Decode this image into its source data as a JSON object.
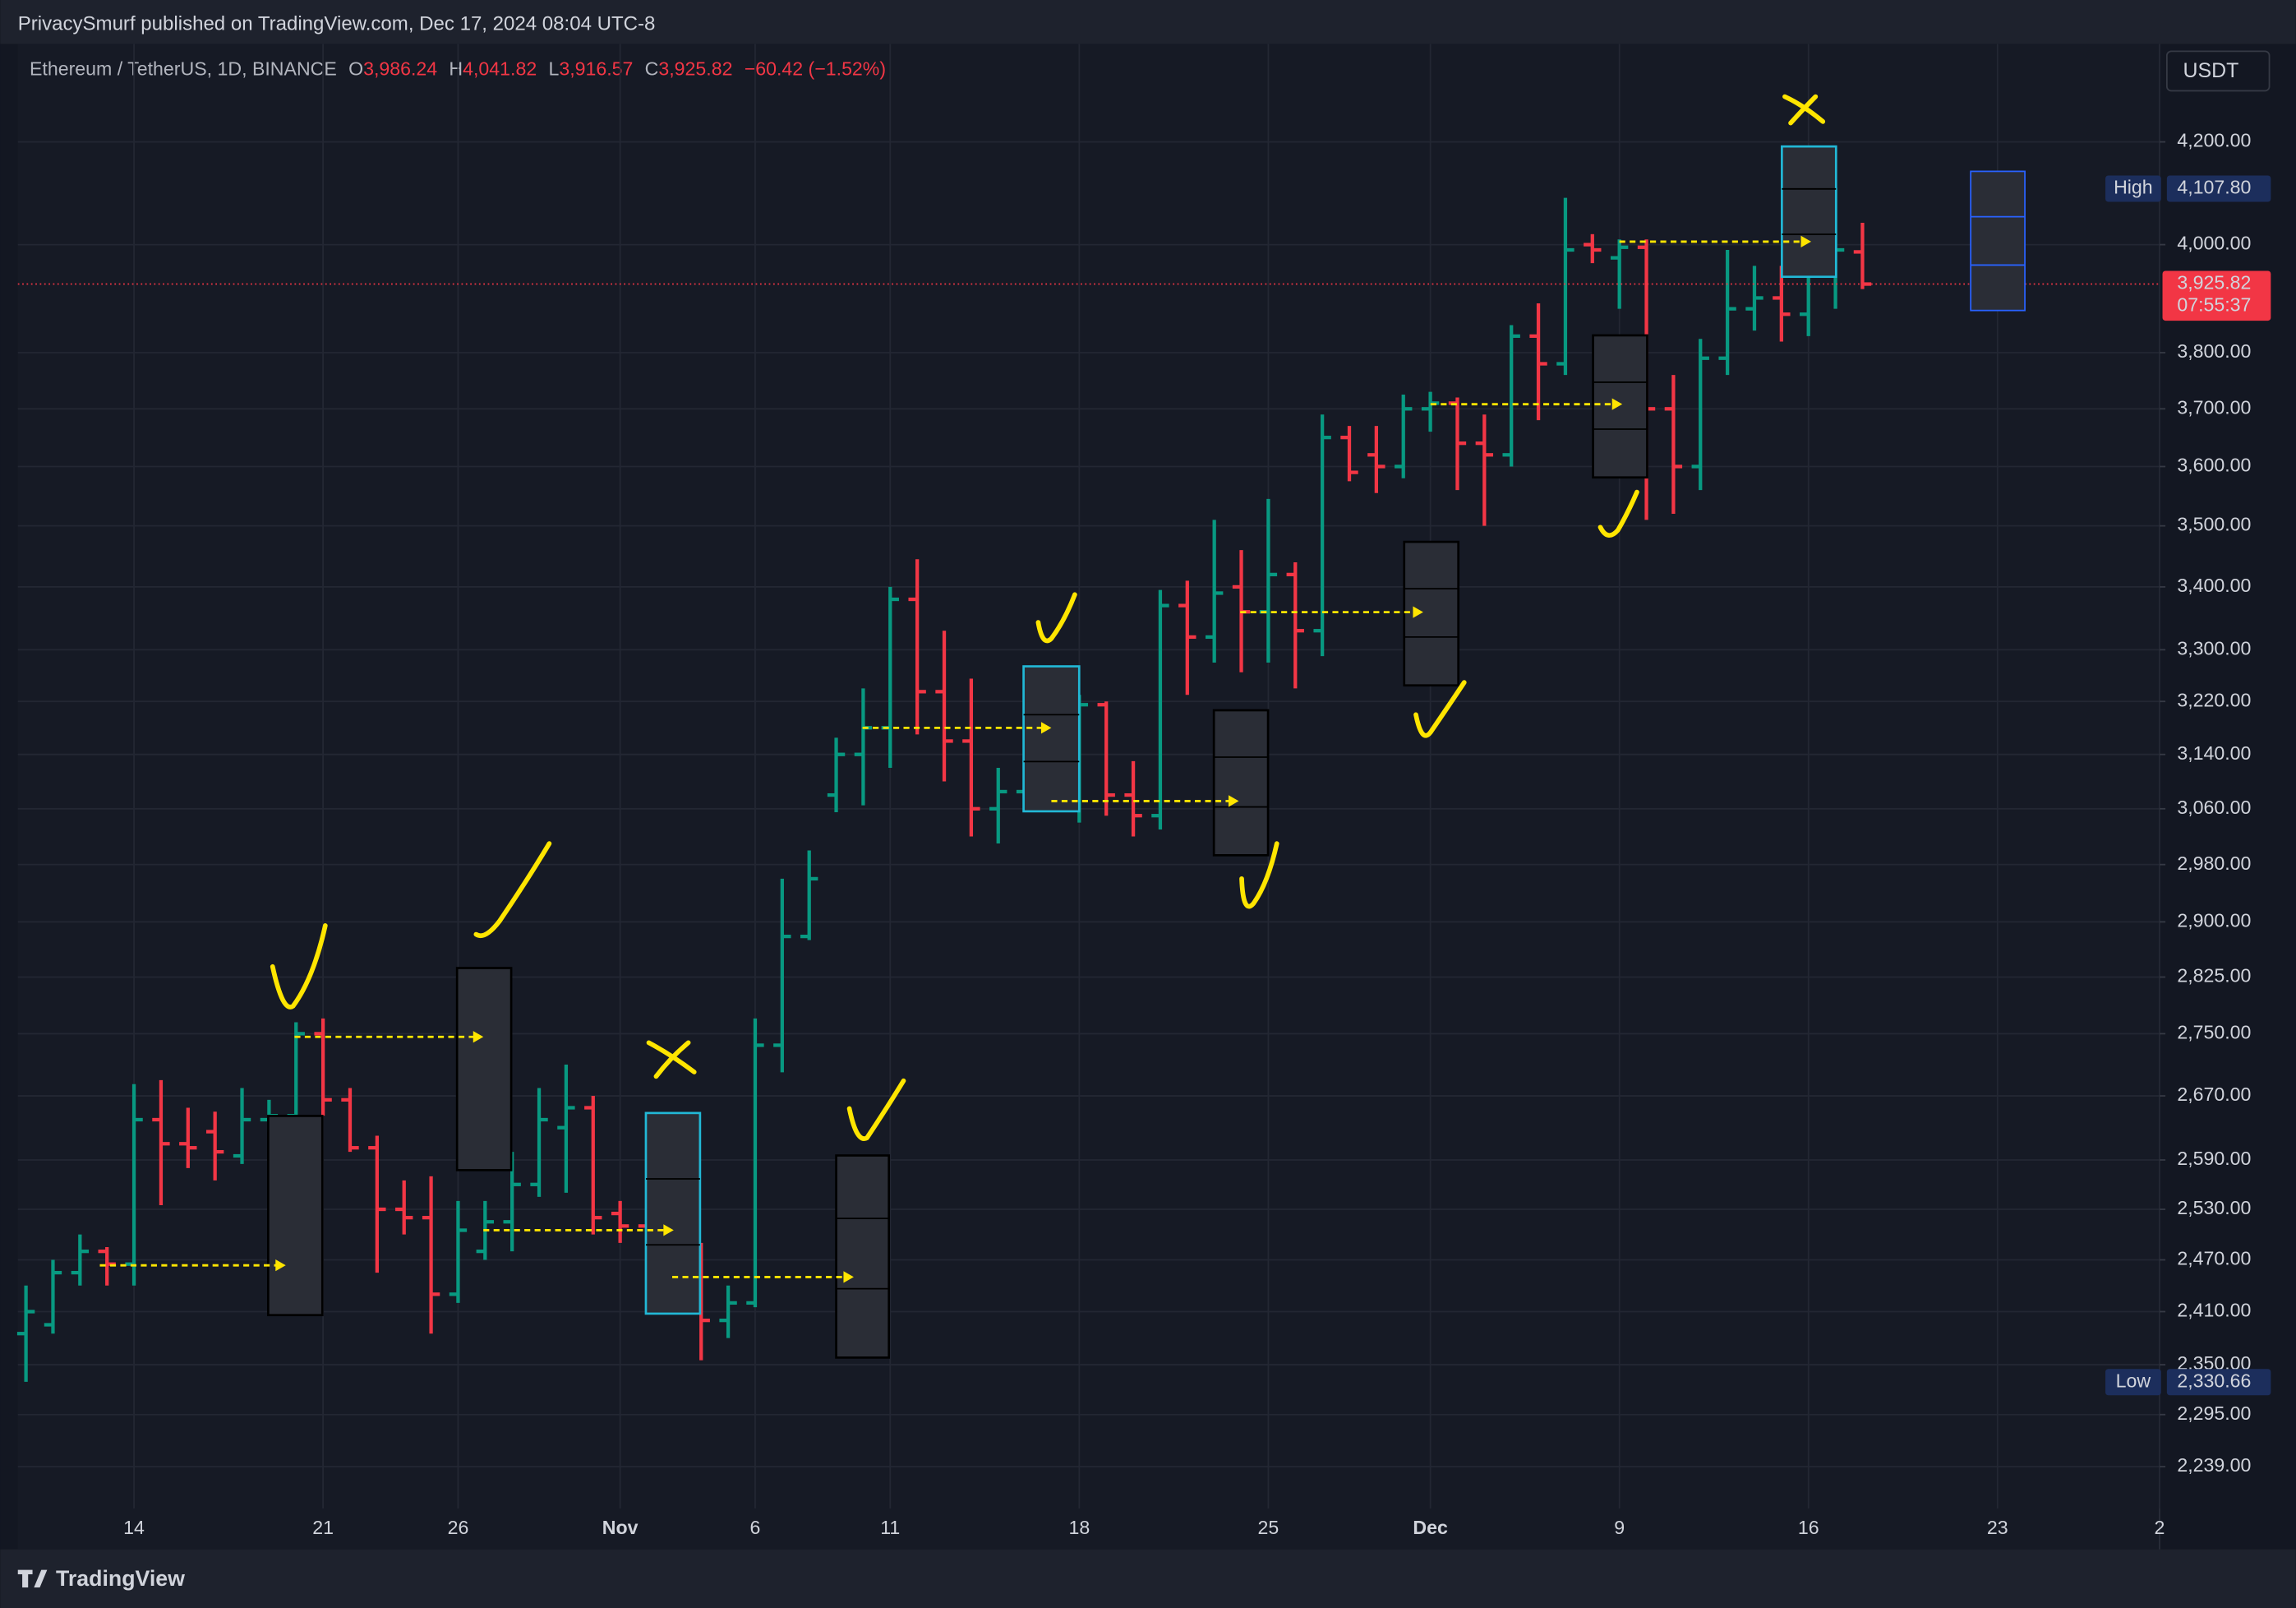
{
  "page": {
    "publisher_line": "PrivacySmurf published on TradingView.com, Dec 17, 2024 08:04 UTC-8",
    "footer_brand": "TradingView",
    "currency_button": "USDT"
  },
  "chart_data": {
    "type": "ohlc",
    "symbol": "Ethereum / TetherUS, 1D, BINANCE",
    "header": {
      "fields": [
        {
          "key": "O",
          "value": "3,986.24"
        },
        {
          "key": "H",
          "value": "4,041.82"
        },
        {
          "key": "L",
          "value": "3,916.57"
        },
        {
          "key": "C",
          "value": "3,925.82"
        }
      ],
      "change": "−60.42 (−1.52%)"
    },
    "up_color": "#089981",
    "down_color": "#f23645",
    "log_scale": true,
    "grid": true,
    "open": [
      2385,
      2395,
      2455,
      2480,
      2465,
      2640,
      2610,
      2625,
      2595,
      2640,
      2645,
      2750,
      2665,
      2605,
      2530,
      2520,
      2430,
      2480,
      2515,
      2560,
      2630,
      2655,
      2525,
      2510,
      2480,
      2445,
      2400,
      2420,
      2735,
      2880,
      3080,
      3140,
      3180,
      3380,
      3235,
      3160,
      3060,
      3085,
      3200,
      3100,
      3215,
      3080,
      3050,
      3370,
      3320,
      3400,
      3360,
      3420,
      3330,
      3650,
      3620,
      3600,
      3700,
      3710,
      3640,
      3620,
      3830,
      3780,
      4000,
      3975,
      3995,
      3700,
      3600,
      3790,
      3880,
      3900,
      3870,
      3950,
      3986.24
    ],
    "high": [
      2440,
      2470,
      2500,
      2485,
      2685,
      2690,
      2655,
      2650,
      2680,
      2665,
      2765,
      2770,
      2680,
      2620,
      2565,
      2570,
      2540,
      2540,
      2600,
      2680,
      2710,
      2670,
      2540,
      2530,
      2490,
      2490,
      2440,
      2770,
      2960,
      3000,
      3165,
      3240,
      3400,
      3445,
      3330,
      3255,
      3120,
      3230,
      3220,
      3230,
      3220,
      3130,
      3395,
      3410,
      3510,
      3460,
      3545,
      3440,
      3690,
      3670,
      3670,
      3725,
      3730,
      3720,
      3690,
      3850,
      3890,
      4090,
      4020,
      4010,
      4010,
      3760,
      3825,
      3990,
      3960,
      3960,
      3980,
      4110,
      4041.82
    ],
    "low": [
      2331,
      2385,
      2440,
      2440,
      2440,
      2535,
      2580,
      2565,
      2585,
      2625,
      2630,
      2645,
      2600,
      2455,
      2500,
      2385,
      2420,
      2470,
      2480,
      2545,
      2550,
      2500,
      2490,
      2465,
      2410,
      2355,
      2380,
      2415,
      2700,
      2875,
      3055,
      3065,
      3120,
      3170,
      3100,
      3020,
      3010,
      3060,
      3070,
      3040,
      3050,
      3020,
      3030,
      3230,
      3280,
      3265,
      3280,
      3240,
      3290,
      3575,
      3555,
      3580,
      3660,
      3560,
      3500,
      3600,
      3680,
      3760,
      3965,
      3880,
      3510,
      3520,
      3560,
      3760,
      3840,
      3820,
      3830,
      3880,
      3916.57
    ],
    "close": [
      2410,
      2455,
      2480,
      2465,
      2640,
      2610,
      2605,
      2600,
      2640,
      2645,
      2750,
      2665,
      2605,
      2530,
      2520,
      2430,
      2505,
      2515,
      2560,
      2640,
      2655,
      2520,
      2510,
      2480,
      2445,
      2400,
      2420,
      2735,
      2880,
      2960,
      3140,
      3180,
      3380,
      3235,
      3160,
      3060,
      3085,
      3190,
      3100,
      3215,
      3080,
      3050,
      3370,
      3320,
      3390,
      3360,
      3420,
      3330,
      3650,
      3590,
      3600,
      3700,
      3710,
      3640,
      3620,
      3830,
      3780,
      3990,
      3990,
      3995,
      3700,
      3600,
      3790,
      3880,
      3900,
      3870,
      3950,
      3990,
      3925.82
    ],
    "xlim": [
      -0.3,
      79
    ],
    "xticks": [
      {
        "value": 4,
        "label": "14"
      },
      {
        "value": 11,
        "label": "21"
      },
      {
        "value": 16,
        "label": "26"
      },
      {
        "value": 22,
        "label": "Nov"
      },
      {
        "value": 27,
        "label": "6"
      },
      {
        "value": 32,
        "label": "11"
      },
      {
        "value": 39,
        "label": "18"
      },
      {
        "value": 46,
        "label": "25"
      },
      {
        "value": 52,
        "label": "Dec"
      },
      {
        "value": 59,
        "label": "9"
      },
      {
        "value": 66,
        "label": "16"
      },
      {
        "value": 73,
        "label": "23"
      },
      {
        "value": 79,
        "label": "2"
      }
    ],
    "ylim": [
      2195,
      4400
    ],
    "yticks": [
      {
        "value": 4200,
        "label": "4,200.00"
      },
      {
        "value": 4000,
        "label": "4,000.00"
      },
      {
        "value": 3800,
        "label": "3,800.00"
      },
      {
        "value": 3700,
        "label": "3,700.00"
      },
      {
        "value": 3600,
        "label": "3,600.00"
      },
      {
        "value": 3500,
        "label": "3,500.00"
      },
      {
        "value": 3400,
        "label": "3,400.00"
      },
      {
        "value": 3300,
        "label": "3,300.00"
      },
      {
        "value": 3220,
        "label": "3,220.00"
      },
      {
        "value": 3140,
        "label": "3,140.00"
      },
      {
        "value": 3060,
        "label": "3,060.00"
      },
      {
        "value": 2980,
        "label": "2,980.00"
      },
      {
        "value": 2900,
        "label": "2,900.00"
      },
      {
        "value": 2825,
        "label": "2,825.00"
      },
      {
        "value": 2750,
        "label": "2,750.00"
      },
      {
        "value": 2670,
        "label": "2,670.00"
      },
      {
        "value": 2590,
        "label": "2,590.00"
      },
      {
        "value": 2530,
        "label": "2,530.00"
      },
      {
        "value": 2470,
        "label": "2,470.00"
      },
      {
        "value": 2410,
        "label": "2,410.00"
      },
      {
        "value": 2350,
        "label": "2,350.00"
      },
      {
        "value": 2295,
        "label": "2,295.00"
      },
      {
        "value": 2239,
        "label": "2,239.00"
      }
    ],
    "price_labels": {
      "high": {
        "name": "High",
        "value": 4107.8,
        "label": "4,107.80"
      },
      "low": {
        "name": "Low",
        "value": 2330.66,
        "label": "2,330.66"
      },
      "last": {
        "label": "3,925.82",
        "countdown": "07:55:37"
      }
    }
  }
}
